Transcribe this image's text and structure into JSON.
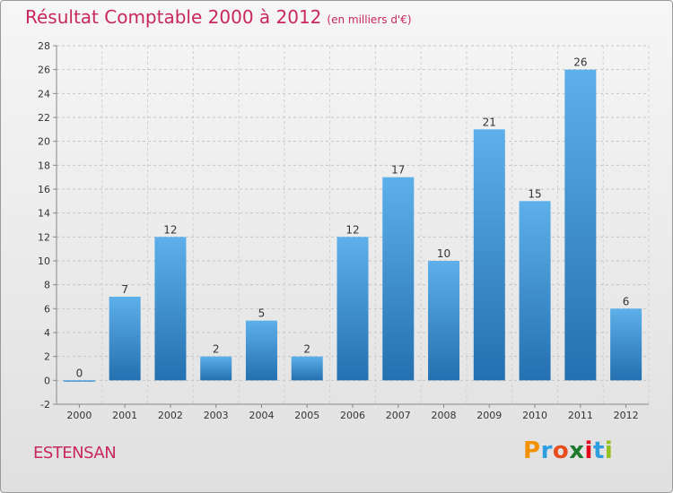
{
  "title": "Résultat Comptable 2000 à 2012",
  "unit_note": "(en milliers d'€)",
  "commune": "ESTENSAN",
  "logo": {
    "letters": [
      "P",
      "r",
      "o",
      "x",
      "i",
      "t",
      "i"
    ],
    "colors": [
      "#f39200",
      "#2d9ee0",
      "#e84e1b",
      "#1f7a2e",
      "#e2001a",
      "#2d9ee0",
      "#95c11f"
    ]
  },
  "colors": {
    "bar": "#3f9ad8",
    "bar_dark": "#2470b0",
    "title": "#c8285a"
  },
  "chart_data": {
    "type": "bar",
    "title": "Résultat Comptable 2000 à 2012",
    "subtitle": "(en milliers d'€)",
    "xlabel": "",
    "ylabel": "",
    "categories": [
      "2000",
      "2001",
      "2002",
      "2003",
      "2004",
      "2005",
      "2006",
      "2007",
      "2008",
      "2009",
      "2010",
      "2011",
      "2012"
    ],
    "values": [
      0,
      7,
      12,
      2,
      5,
      2,
      12,
      17,
      10,
      21,
      15,
      26,
      6
    ],
    "ylim": [
      -2,
      28
    ],
    "yticks": [
      -2,
      0,
      2,
      4,
      6,
      8,
      10,
      12,
      14,
      16,
      18,
      20,
      22,
      24,
      26,
      28
    ],
    "grid": true
  }
}
